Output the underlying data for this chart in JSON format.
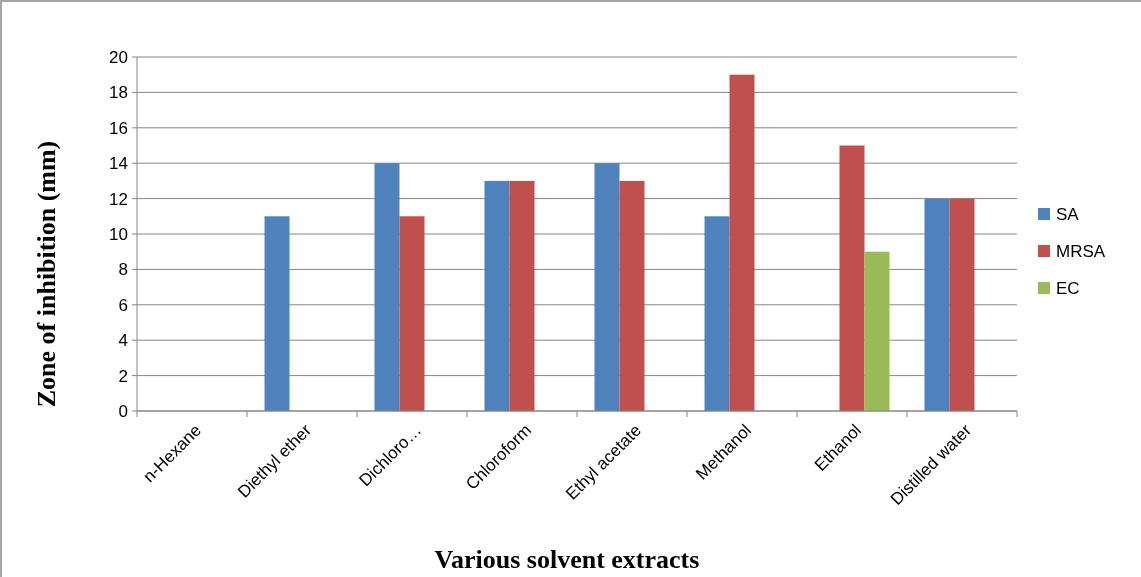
{
  "chart_data": {
    "type": "bar",
    "xlabel": "Various solvent extracts",
    "ylabel": "Zone of inhibition (mm)",
    "categories": [
      "n-Hexane",
      "Diethyl ether",
      "Dichloro…",
      "Chloroform",
      "Ethyl acetate",
      "Methanol",
      "Ethanol",
      "Distilled water"
    ],
    "series": [
      {
        "name": "SA",
        "color": "#4f81bd",
        "values": [
          0,
          11,
          14,
          13,
          14,
          11,
          0,
          12
        ]
      },
      {
        "name": "MRSA",
        "color": "#c0504d",
        "values": [
          0,
          0,
          11,
          13,
          13,
          19,
          15,
          12
        ]
      },
      {
        "name": "EC",
        "color": "#9bbb59",
        "values": [
          0,
          0,
          0,
          0,
          0,
          0,
          9,
          0
        ]
      }
    ],
    "ylim": [
      0,
      20
    ],
    "yticks": [
      0,
      2,
      4,
      6,
      8,
      10,
      12,
      14,
      16,
      18,
      20
    ],
    "grid": "y",
    "legend": "right"
  }
}
